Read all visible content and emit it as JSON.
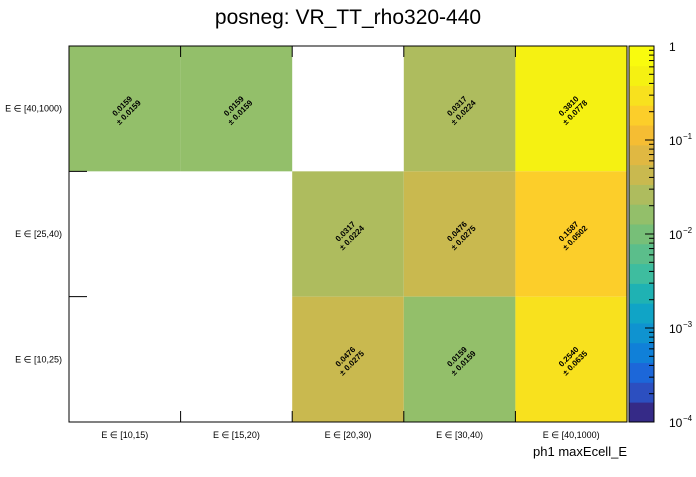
{
  "chart_data": {
    "type": "heatmap",
    "title": "posneg: VR_TT_rho320-440",
    "xlabel": "ph1 maxEcell_E",
    "ylabel": "",
    "x_categories": [
      "E ∈ [10,15)",
      "E ∈ [15,20)",
      "E ∈ [20,30)",
      "E ∈ [30,40)",
      "E ∈ [40,1000)"
    ],
    "y_categories": [
      "E ∈ [10,25)",
      "E ∈ [25,40)",
      "E ∈ [40,1000)"
    ],
    "cells": [
      {
        "x": 0,
        "y": 2,
        "value": 0.0159,
        "error": 0.0159,
        "value_text": "0.0159",
        "error_text": "± 0.0159"
      },
      {
        "x": 1,
        "y": 2,
        "value": 0.0159,
        "error": 0.0159,
        "value_text": "0.0159",
        "error_text": "± 0.0159"
      },
      {
        "x": 3,
        "y": 2,
        "value": 0.0317,
        "error": 0.0224,
        "value_text": "0.0317",
        "error_text": "± 0.0224"
      },
      {
        "x": 4,
        "y": 2,
        "value": 0.381,
        "error": 0.0778,
        "value_text": "0.3810",
        "error_text": "± 0.0778"
      },
      {
        "x": 2,
        "y": 1,
        "value": 0.0317,
        "error": 0.0224,
        "value_text": "0.0317",
        "error_text": "± 0.0224"
      },
      {
        "x": 3,
        "y": 1,
        "value": 0.0476,
        "error": 0.0275,
        "value_text": "0.0476",
        "error_text": "± 0.0275"
      },
      {
        "x": 4,
        "y": 1,
        "value": 0.1587,
        "error": 0.0502,
        "value_text": "0.1587",
        "error_text": "± 0.0502"
      },
      {
        "x": 2,
        "y": 0,
        "value": 0.0476,
        "error": 0.0275,
        "value_text": "0.0476",
        "error_text": "± 0.0275"
      },
      {
        "x": 3,
        "y": 0,
        "value": 0.0159,
        "error": 0.0159,
        "value_text": "0.0159",
        "error_text": "± 0.0159"
      },
      {
        "x": 4,
        "y": 0,
        "value": 0.254,
        "error": 0.0635,
        "value_text": "0.2540",
        "error_text": "± 0.0635"
      }
    ],
    "zscale": "log",
    "zlim": [
      0.0001,
      1
    ],
    "colorbar_labels": [
      {
        "base": "1",
        "exp": "",
        "value": 1
      },
      {
        "base": "10",
        "exp": "−1",
        "value": 0.1
      },
      {
        "base": "10",
        "exp": "−2",
        "value": 0.01
      },
      {
        "base": "10",
        "exp": "−3",
        "value": 0.001
      },
      {
        "base": "10",
        "exp": "−4",
        "value": 0.0001
      }
    ],
    "palette": [
      "#352a87",
      "#2c4fc0",
      "#1c67d9",
      "#1080d8",
      "#0f93d0",
      "#10a4c6",
      "#1fb2b3",
      "#3ebd9f",
      "#5bbe8b",
      "#77bf78",
      "#93bf6a",
      "#aebc5e",
      "#c9b94f",
      "#e0b842",
      "#f5bd33",
      "#fcce2a",
      "#f8e11e",
      "#f5f112",
      "#f9fb0e"
    ]
  }
}
